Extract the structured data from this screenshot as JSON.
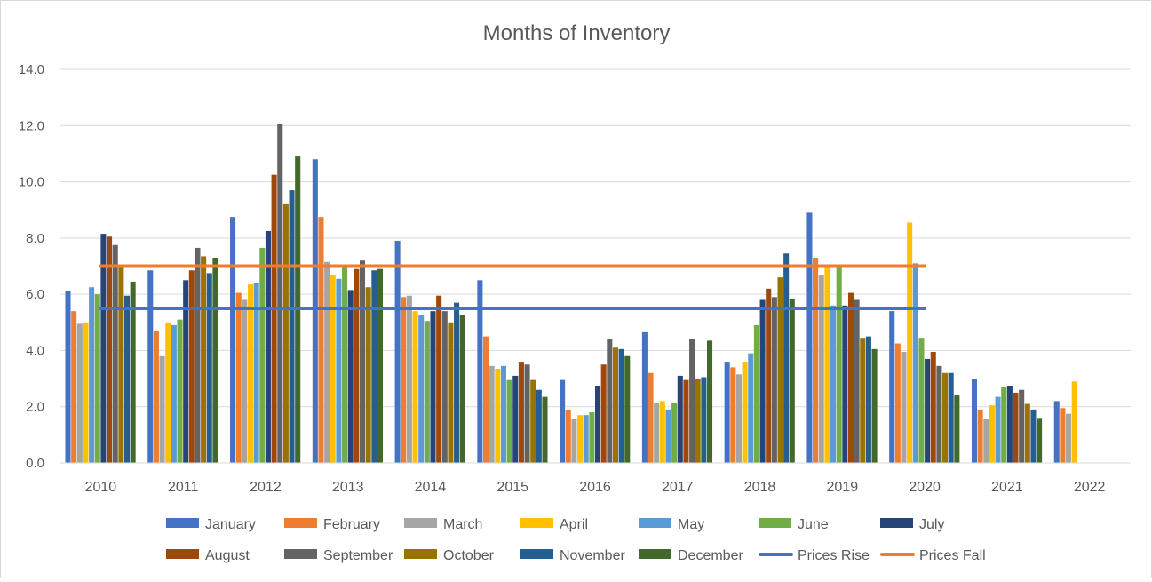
{
  "chart_data": {
    "type": "bar",
    "title": "Months of Inventory",
    "xlabel": "",
    "ylabel": "",
    "ylim": [
      0,
      14
    ],
    "yticks": [
      "0.0",
      "2.0",
      "4.0",
      "6.0",
      "8.0",
      "10.0",
      "12.0",
      "14.0"
    ],
    "grid": true,
    "legend_position": "bottom",
    "categories": [
      "2010",
      "2011",
      "2012",
      "2013",
      "2014",
      "2015",
      "2016",
      "2017",
      "2018",
      "2019",
      "2020",
      "2021",
      "2022"
    ],
    "series": [
      {
        "name": "January",
        "color": "#4472C4",
        "values": [
          6.1,
          6.85,
          8.75,
          10.8,
          7.9,
          6.5,
          2.95,
          4.65,
          3.6,
          8.9,
          5.4,
          3.0,
          2.2
        ]
      },
      {
        "name": "February",
        "color": "#ED7D31",
        "values": [
          5.4,
          4.7,
          6.05,
          8.75,
          5.9,
          4.5,
          1.9,
          3.2,
          3.4,
          7.3,
          4.25,
          1.9,
          1.95
        ]
      },
      {
        "name": "March",
        "color": "#A5A5A5",
        "values": [
          4.95,
          3.8,
          5.8,
          7.15,
          5.95,
          3.45,
          1.55,
          2.15,
          3.15,
          6.7,
          3.95,
          1.55,
          1.75
        ]
      },
      {
        "name": "April",
        "color": "#FFC000",
        "values": [
          5.0,
          5.0,
          6.35,
          6.7,
          5.4,
          3.35,
          1.7,
          2.2,
          3.6,
          7.0,
          8.55,
          2.05,
          2.9
        ]
      },
      {
        "name": "May",
        "color": "#5B9BD5",
        "values": [
          6.25,
          4.9,
          6.4,
          6.55,
          5.25,
          3.45,
          1.7,
          1.9,
          3.9,
          5.6,
          7.1,
          2.35,
          null
        ]
      },
      {
        "name": "June",
        "color": "#70AD47",
        "values": [
          6.0,
          5.1,
          7.65,
          6.95,
          5.05,
          2.95,
          1.8,
          2.15,
          4.9,
          7.0,
          4.45,
          2.7,
          null
        ]
      },
      {
        "name": "July",
        "color": "#264478",
        "values": [
          8.15,
          6.5,
          8.25,
          6.15,
          5.4,
          3.1,
          2.75,
          3.1,
          5.8,
          5.6,
          3.7,
          2.75,
          null
        ]
      },
      {
        "name": "August",
        "color": "#9E480E",
        "values": [
          8.05,
          6.85,
          10.25,
          6.9,
          5.95,
          3.6,
          3.5,
          2.95,
          6.2,
          6.05,
          3.95,
          2.5,
          null
        ]
      },
      {
        "name": "September",
        "color": "#636363",
        "values": [
          7.75,
          7.65,
          12.05,
          7.2,
          5.4,
          3.5,
          4.4,
          4.4,
          5.9,
          5.8,
          3.45,
          2.6,
          null
        ]
      },
      {
        "name": "October",
        "color": "#997300",
        "values": [
          7.0,
          7.35,
          9.2,
          6.25,
          5.0,
          2.95,
          4.1,
          3.0,
          6.6,
          4.45,
          3.2,
          2.1,
          null
        ]
      },
      {
        "name": "November",
        "color": "#255E91",
        "values": [
          5.95,
          6.75,
          9.7,
          6.85,
          5.7,
          2.6,
          4.05,
          3.05,
          7.45,
          4.5,
          3.2,
          1.9,
          null
        ]
      },
      {
        "name": "December",
        "color": "#43682B",
        "values": [
          6.45,
          7.3,
          10.9,
          6.9,
          5.25,
          2.35,
          3.8,
          4.35,
          5.85,
          4.05,
          2.4,
          1.6,
          null
        ]
      }
    ],
    "reference_lines": [
      {
        "name": "Prices Rise",
        "color": "#4472C4",
        "value": 5.5
      },
      {
        "name": "Prices Fall",
        "color": "#ED7D31",
        "value": 7.0
      }
    ]
  }
}
